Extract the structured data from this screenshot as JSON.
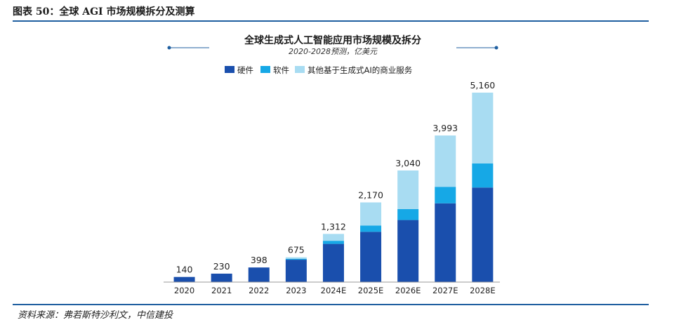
{
  "figure": {
    "title": "图表 50：全球 AGI 市场规模拆分及测算",
    "source": "资料来源：弗若斯特沙利文，中信建投"
  },
  "colors": {
    "hardware": "#1a4fad",
    "software": "#16a8e6",
    "services": "#a8dcf2",
    "rule": "#1f5fa0"
  },
  "chart_data": {
    "type": "bar",
    "stacked": true,
    "title": "全球生成式人工智能应用市场规模及拆分",
    "subtitle": "2020-2028预测，亿美元",
    "categories": [
      "2020",
      "2021",
      "2022",
      "2023",
      "2024E",
      "2025E",
      "2026E",
      "2027E",
      "2028E"
    ],
    "series": [
      {
        "name": "硬件",
        "color": "#1a4fad",
        "values": [
          140,
          230,
          398,
          610,
          1040,
          1370,
          1690,
          2145,
          2575
        ]
      },
      {
        "name": "软件",
        "color": "#16a8e6",
        "values": [
          0,
          0,
          0,
          25,
          85,
          170,
          300,
          450,
          655
        ]
      },
      {
        "name": "其他基于生成式AI的商业服务",
        "color": "#a8dcf2",
        "values": [
          0,
          0,
          0,
          40,
          187,
          630,
          1050,
          1398,
          1930
        ]
      }
    ],
    "totals": [
      140,
      230,
      398,
      675,
      1312,
      2170,
      3040,
      3993,
      5160
    ],
    "total_labels": [
      "140",
      "230",
      "398",
      "675",
      "1,312",
      "2,170",
      "3,040",
      "3,993",
      "5,160"
    ],
    "xlabel": "",
    "ylabel": "",
    "ylim": [
      0,
      5160
    ],
    "grid": false,
    "legend_position": "top-left"
  }
}
